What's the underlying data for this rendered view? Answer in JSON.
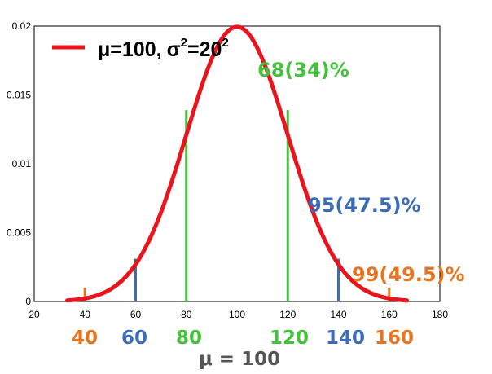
{
  "chart_data": {
    "type": "line",
    "distribution": "normal",
    "mean": 100,
    "sd": 20,
    "curve_x_range": [
      33,
      167
    ],
    "xlim": [
      20,
      180
    ],
    "ylim": [
      0,
      0.02
    ],
    "x_ticks": [
      "20",
      "40",
      "60",
      "80",
      "100",
      "120",
      "140",
      "160",
      "180"
    ],
    "y_ticks": [
      "0",
      "0.005",
      "0.01",
      "0.015",
      "0.02"
    ],
    "grid": false,
    "legend_position": "top-left",
    "legend": {
      "mu": "μ",
      "mu_value": "=100,",
      "sigma": "σ",
      "sigma_sup": "2",
      "sigma_value": "=20",
      "sigma_value_sup": "2"
    },
    "series": [
      {
        "name": "μ=100, σ²=20²",
        "color": "#e8141e"
      }
    ],
    "marker_lines": [
      {
        "x": 80,
        "top": 0.0139,
        "color": "#44c23c"
      },
      {
        "x": 120,
        "top": 0.0139,
        "color": "#44c23c"
      },
      {
        "x": 60,
        "top": 0.0031,
        "color": "#3b6cb5"
      },
      {
        "x": 140,
        "top": 0.0031,
        "color": "#3b6cb5"
      },
      {
        "x": 40,
        "top": 0.001,
        "color": "#e7741f"
      },
      {
        "x": 160,
        "top": 0.001,
        "color": "#e7741f"
      }
    ],
    "annotations": [
      {
        "text": "68(34)%",
        "color": "#44c23c"
      },
      {
        "text": "95(47.5)%",
        "color": "#3b6cb5"
      },
      {
        "text": "99(49.5)%",
        "color": "#e7741f"
      }
    ],
    "bottom_labels": [
      {
        "text": "40",
        "color": "#e7741f"
      },
      {
        "text": "60",
        "color": "#3b6cb5"
      },
      {
        "text": "80",
        "color": "#44c23c"
      },
      {
        "text": "120",
        "color": "#44c23c"
      },
      {
        "text": "140",
        "color": "#3b6cb5"
      },
      {
        "text": "160",
        "color": "#e7741f"
      }
    ],
    "mean_label": "μ = 100",
    "mean_label_color": "#555555"
  }
}
